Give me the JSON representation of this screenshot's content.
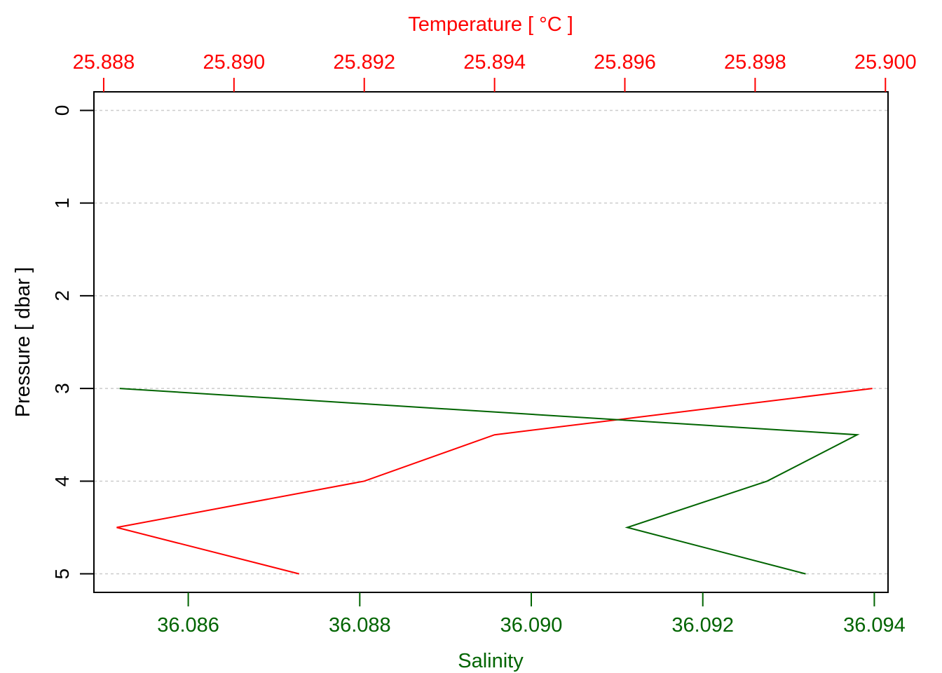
{
  "chart_data": {
    "type": "line",
    "title": "",
    "ylabel": "Pressure [ dbar ]",
    "ylim": [
      5.2,
      -0.2
    ],
    "yticks": [
      0,
      1,
      2,
      3,
      4,
      5
    ],
    "grid": "horizontal dotted at y ticks",
    "top_axis": {
      "label": "Temperature [ °C ]",
      "color": "#FF0000",
      "lim": [
        25.88785,
        25.90004
      ],
      "ticks": [
        25.888,
        25.89,
        25.892,
        25.894,
        25.896,
        25.898,
        25.9
      ],
      "tick_labels": [
        "25.888",
        "25.890",
        "25.892",
        "25.894",
        "25.896",
        "25.898",
        "25.900"
      ]
    },
    "bottom_axis": {
      "label": "Salinity",
      "color": "#006400",
      "lim": [
        36.0849,
        36.09416
      ],
      "ticks": [
        36.086,
        36.088,
        36.09,
        36.092,
        36.094
      ],
      "tick_labels": [
        "36.086",
        "36.088",
        "36.090",
        "36.092",
        "36.094"
      ]
    },
    "series": [
      {
        "axis": "top",
        "color": "#FF0000",
        "pressure": [
          3.0,
          3.5,
          4.0,
          4.5,
          5.0
        ],
        "values": [
          25.8998,
          25.894,
          25.892,
          25.8882,
          25.891
        ]
      },
      {
        "axis": "bottom",
        "color": "#006400",
        "pressure": [
          3.0,
          3.5,
          4.0,
          4.5,
          5.0
        ],
        "values": [
          36.0852,
          36.0938,
          36.09275,
          36.09112,
          36.0932
        ]
      }
    ]
  }
}
